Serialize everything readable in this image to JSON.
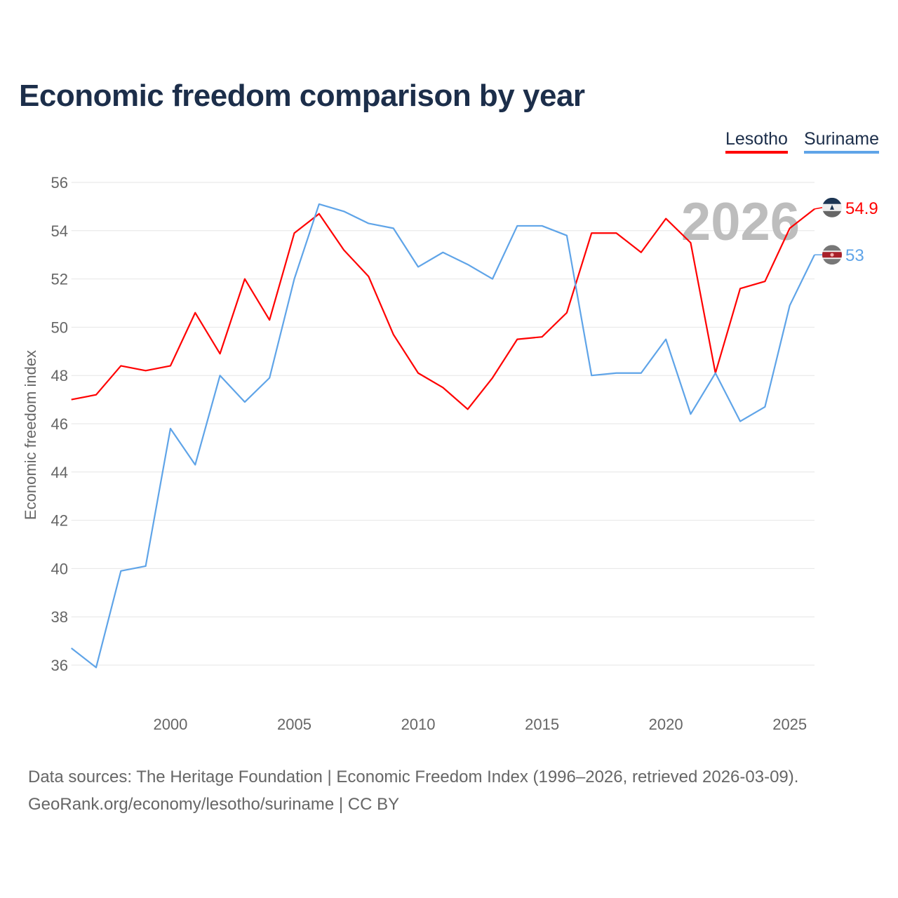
{
  "chart_data": {
    "type": "line",
    "title": "Economic freedom comparison by year",
    "ylabel": "Economic freedom index",
    "xlabel": "",
    "ylim": [
      36,
      56
    ],
    "xlim": [
      1996,
      2026
    ],
    "yticks": [
      36,
      38,
      40,
      42,
      44,
      46,
      48,
      50,
      52,
      54,
      56
    ],
    "xticks": [
      2000,
      2005,
      2010,
      2015,
      2020,
      2025
    ],
    "grid": true,
    "legend_placement": "top-right",
    "year_watermark": "2026",
    "x": [
      1996,
      1997,
      1998,
      1999,
      2000,
      2001,
      2002,
      2003,
      2004,
      2005,
      2006,
      2007,
      2008,
      2009,
      2010,
      2011,
      2012,
      2013,
      2014,
      2015,
      2016,
      2017,
      2018,
      2019,
      2020,
      2021,
      2022,
      2023,
      2024,
      2025,
      2026
    ],
    "series": [
      {
        "name": "Lesotho",
        "color": "#ff0000",
        "end_label": "54.9",
        "values": [
          47.0,
          47.2,
          48.4,
          48.2,
          48.4,
          50.6,
          48.9,
          52.0,
          50.3,
          53.9,
          54.7,
          53.2,
          52.1,
          49.7,
          48.1,
          47.5,
          46.6,
          47.9,
          49.5,
          49.6,
          50.6,
          53.9,
          53.9,
          53.1,
          54.5,
          53.5,
          48.1,
          51.6,
          51.9,
          54.1,
          54.9
        ]
      },
      {
        "name": "Suriname",
        "color": "#5fa4e8",
        "end_label": "53",
        "values": [
          36.7,
          35.9,
          39.9,
          40.1,
          45.8,
          44.3,
          48.0,
          46.9,
          47.9,
          52.0,
          55.1,
          54.8,
          54.3,
          54.1,
          52.5,
          53.1,
          52.6,
          52.0,
          54.2,
          54.2,
          53.8,
          48.0,
          48.1,
          48.1,
          49.5,
          46.4,
          48.1,
          46.1,
          46.7,
          50.9,
          53.0
        ]
      }
    ]
  },
  "footer": {
    "line1": "Data sources: The Heritage Foundation | Economic Freedom Index (1996–2026, retrieved 2026-03-09).",
    "line2": "GeoRank.org/economy/lesotho/suriname | CC BY"
  }
}
